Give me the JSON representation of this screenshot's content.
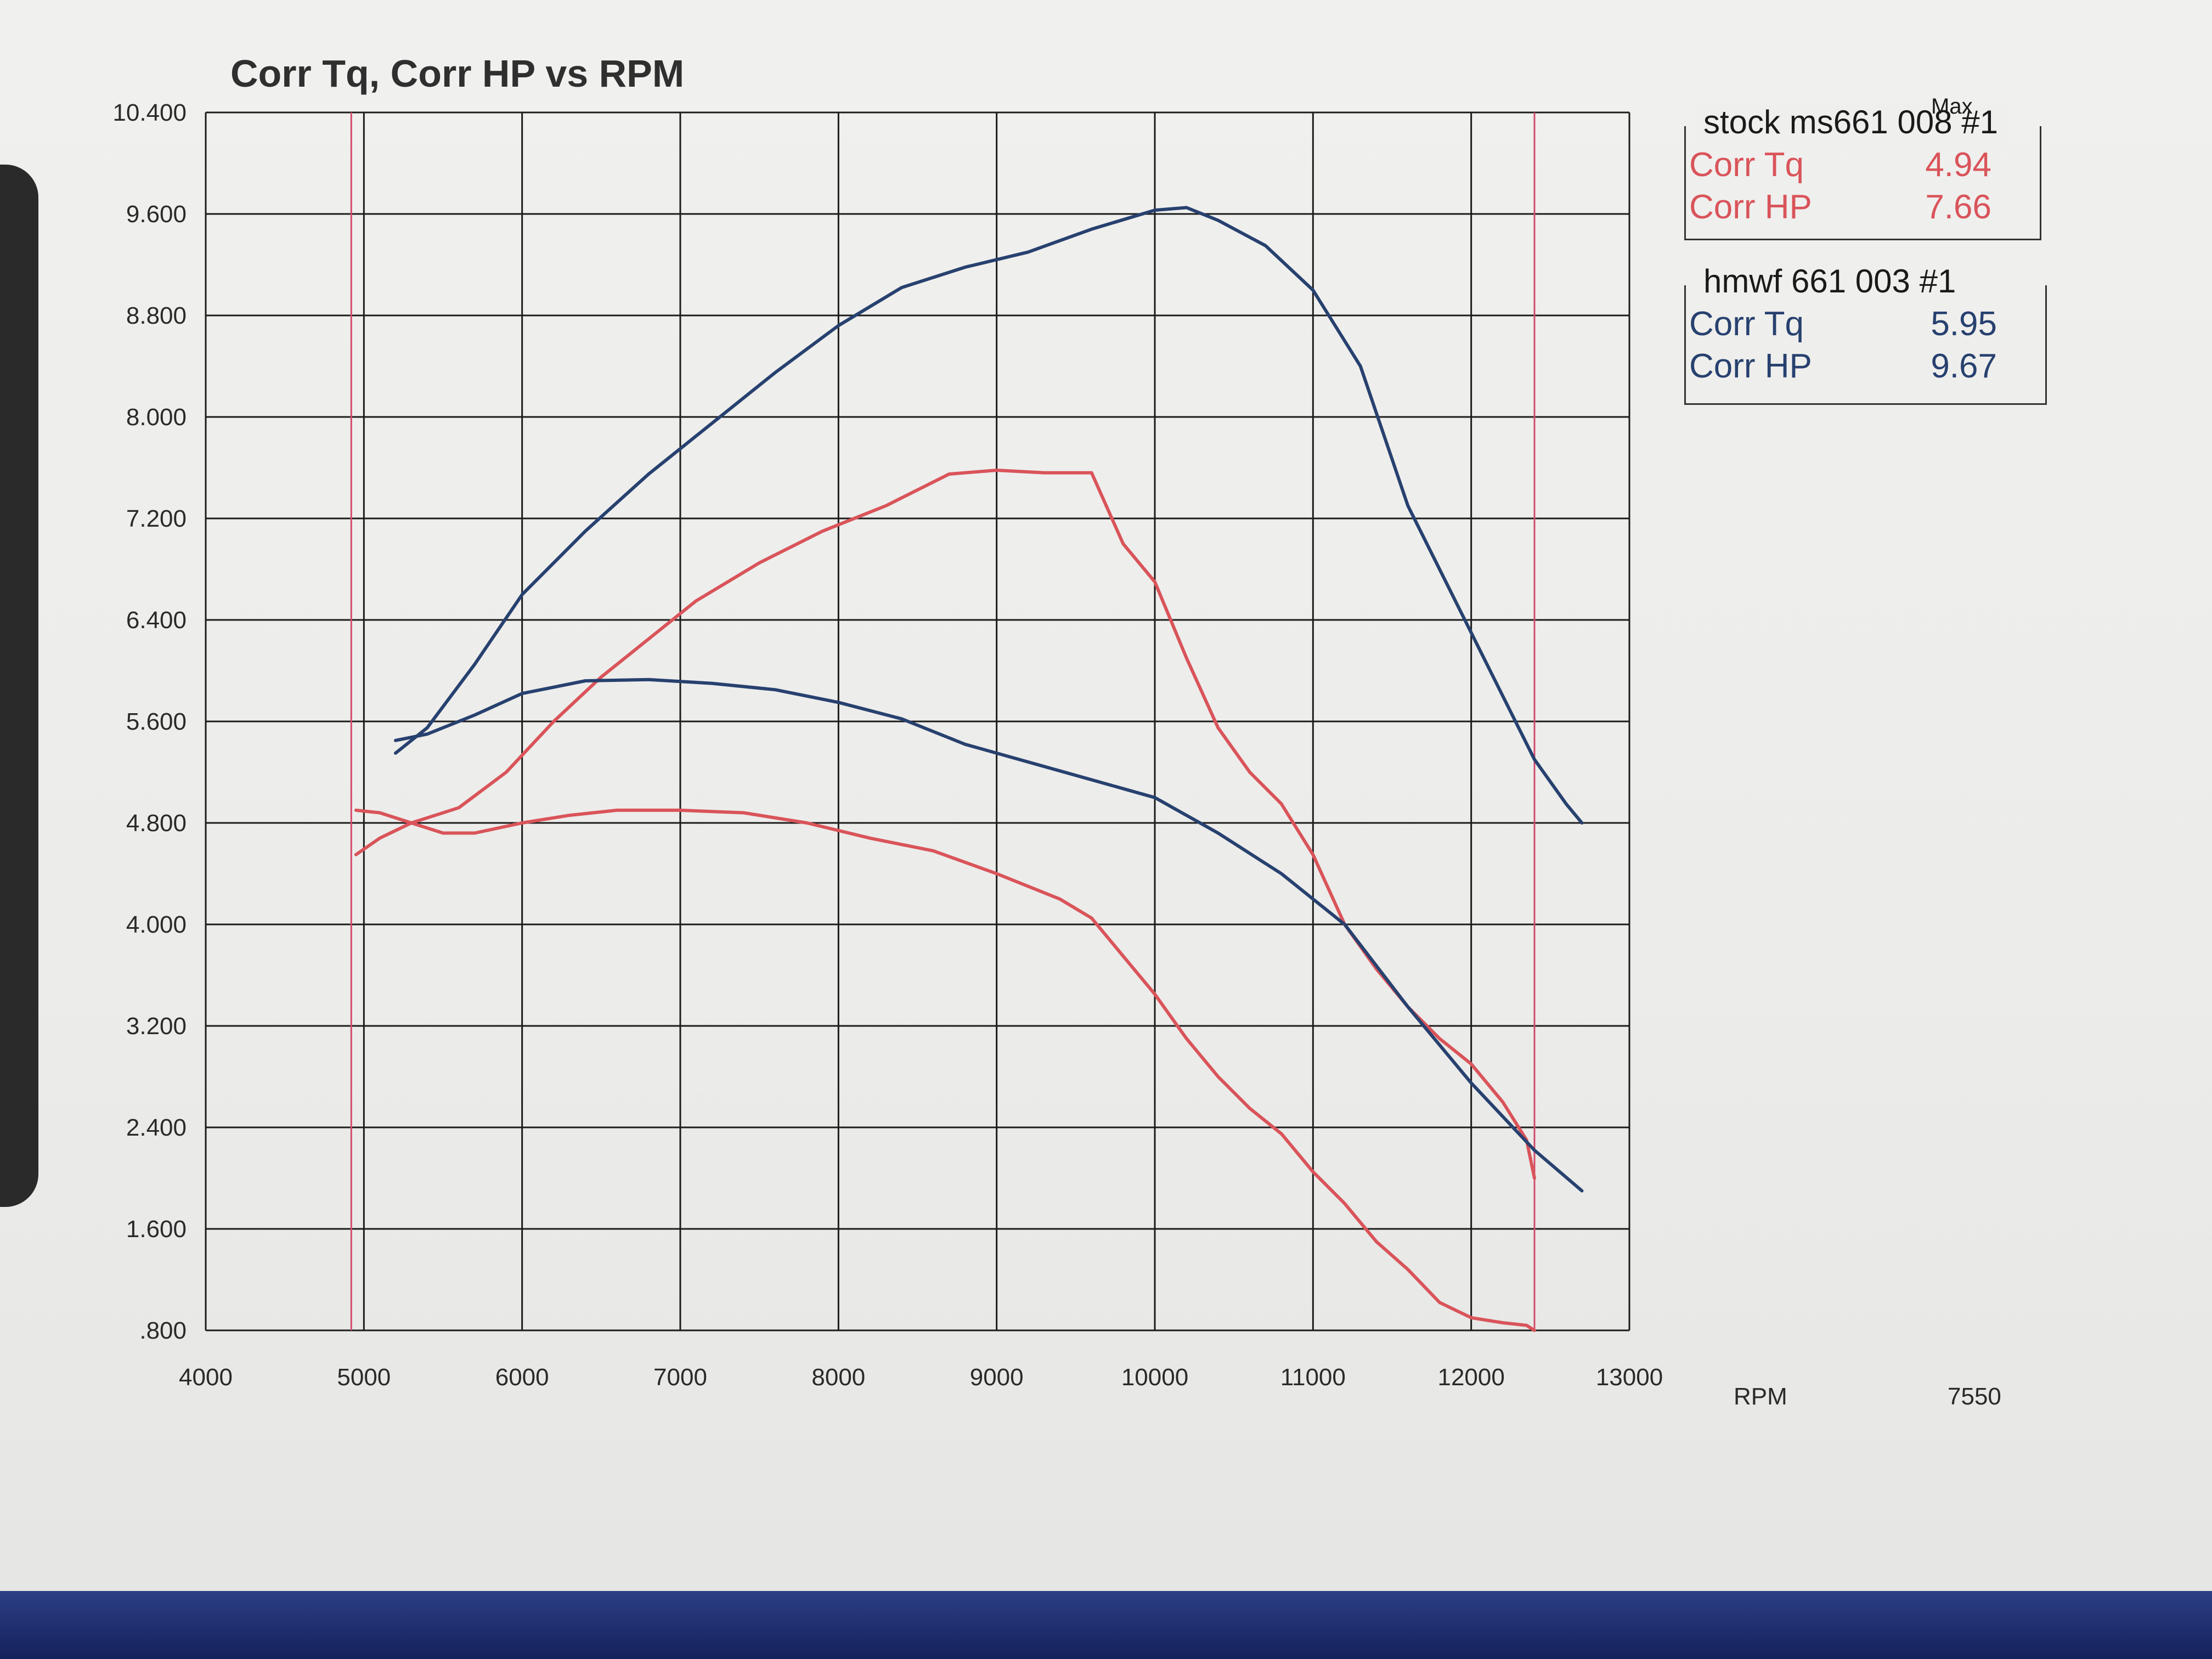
{
  "chart_data": {
    "type": "line",
    "title": "Corr Tq, Corr HP vs RPM",
    "xlabel": "RPM",
    "xlim": [
      4000,
      13000
    ],
    "ylim": [
      0.8,
      10.4
    ],
    "x_ticks": [
      "4000",
      "5000",
      "6000",
      "7000",
      "8000",
      "9000",
      "10000",
      "11000",
      "12000",
      "13000"
    ],
    "y_ticks": [
      "10.400",
      "9.600",
      "8.800",
      "8.000",
      "7.200",
      "6.400",
      "5.600",
      "4.800",
      "4.000",
      "3.200",
      "2.400",
      "1.600",
      ".800"
    ],
    "extra_label": "7550",
    "markers": [
      4920,
      12400
    ],
    "grid": true,
    "series": [
      {
        "name": "Corr Tq",
        "run": "stock ms661 008 #1",
        "color": "#d9545a",
        "x": [
          4950,
          5100,
          5300,
          5500,
          5700,
          6000,
          6300,
          6600,
          7000,
          7400,
          7800,
          8200,
          8600,
          9000,
          9400,
          9600,
          9800,
          10000,
          10200,
          10400,
          10600,
          10800,
          11000,
          11200,
          11400,
          11600,
          11800,
          12000,
          12200,
          12350,
          12400
        ],
        "y": [
          4.9,
          4.88,
          4.8,
          4.72,
          4.72,
          4.8,
          4.86,
          4.9,
          4.9,
          4.88,
          4.8,
          4.68,
          4.58,
          4.4,
          4.2,
          4.05,
          3.75,
          3.45,
          3.1,
          2.8,
          2.55,
          2.35,
          2.05,
          1.8,
          1.5,
          1.28,
          1.02,
          0.9,
          0.86,
          0.84,
          0.8
        ]
      },
      {
        "name": "Corr HP",
        "run": "stock ms661 008 #1",
        "color": "#d9545a",
        "x": [
          4950,
          5100,
          5300,
          5600,
          5900,
          6200,
          6500,
          6800,
          7100,
          7500,
          7900,
          8300,
          8700,
          9000,
          9300,
          9600,
          9800,
          10000,
          10200,
          10400,
          10600,
          10800,
          11000,
          11200,
          11400,
          11600,
          11800,
          12000,
          12200,
          12350,
          12400
        ],
        "y": [
          4.55,
          4.68,
          4.8,
          4.92,
          5.2,
          5.6,
          5.95,
          6.25,
          6.55,
          6.85,
          7.1,
          7.3,
          7.55,
          7.58,
          7.56,
          7.56,
          7.0,
          6.7,
          6.1,
          5.55,
          5.2,
          4.95,
          4.55,
          4.0,
          3.65,
          3.35,
          3.1,
          2.9,
          2.6,
          2.3,
          2.0
        ]
      },
      {
        "name": "Corr Tq",
        "run": "hmwf 661 003 #1",
        "color": "#27416f",
        "x": [
          5200,
          5400,
          5700,
          6000,
          6400,
          6800,
          7200,
          7600,
          8000,
          8400,
          8800,
          9200,
          9600,
          10000,
          10400,
          10800,
          11200,
          11600,
          12000,
          12400,
          12700
        ],
        "y": [
          5.45,
          5.5,
          5.65,
          5.82,
          5.92,
          5.93,
          5.9,
          5.85,
          5.75,
          5.62,
          5.42,
          5.28,
          5.14,
          5.0,
          4.72,
          4.4,
          4.0,
          3.35,
          2.75,
          2.22,
          1.9
        ]
      },
      {
        "name": "Corr HP",
        "run": "hmwf 661 003 #1",
        "color": "#27416f",
        "x": [
          5200,
          5400,
          5700,
          6000,
          6400,
          6800,
          7200,
          7600,
          8000,
          8400,
          8800,
          9200,
          9600,
          10000,
          10200,
          10400,
          10700,
          11000,
          11300,
          11600,
          11900,
          12200,
          12400,
          12600,
          12700
        ],
        "y": [
          5.35,
          5.55,
          6.05,
          6.6,
          7.1,
          7.55,
          7.95,
          8.35,
          8.72,
          9.02,
          9.18,
          9.3,
          9.48,
          9.63,
          9.65,
          9.55,
          9.35,
          9.0,
          8.4,
          7.3,
          6.55,
          5.8,
          5.3,
          4.95,
          4.8
        ]
      }
    ]
  },
  "legend": {
    "max_label": "Max",
    "runs": [
      {
        "title": "stock ms661 008 #1",
        "color": "#d9545a",
        "rows": [
          {
            "label": "Corr Tq",
            "value": "4.94"
          },
          {
            "label": "Corr HP",
            "value": "7.66"
          }
        ]
      },
      {
        "title": "hmwf 661  003  #1",
        "color": "#27416f",
        "rows": [
          {
            "label": "Corr Tq",
            "value": "5.95"
          },
          {
            "label": "Corr HP",
            "value": "9.67"
          }
        ]
      }
    ]
  }
}
